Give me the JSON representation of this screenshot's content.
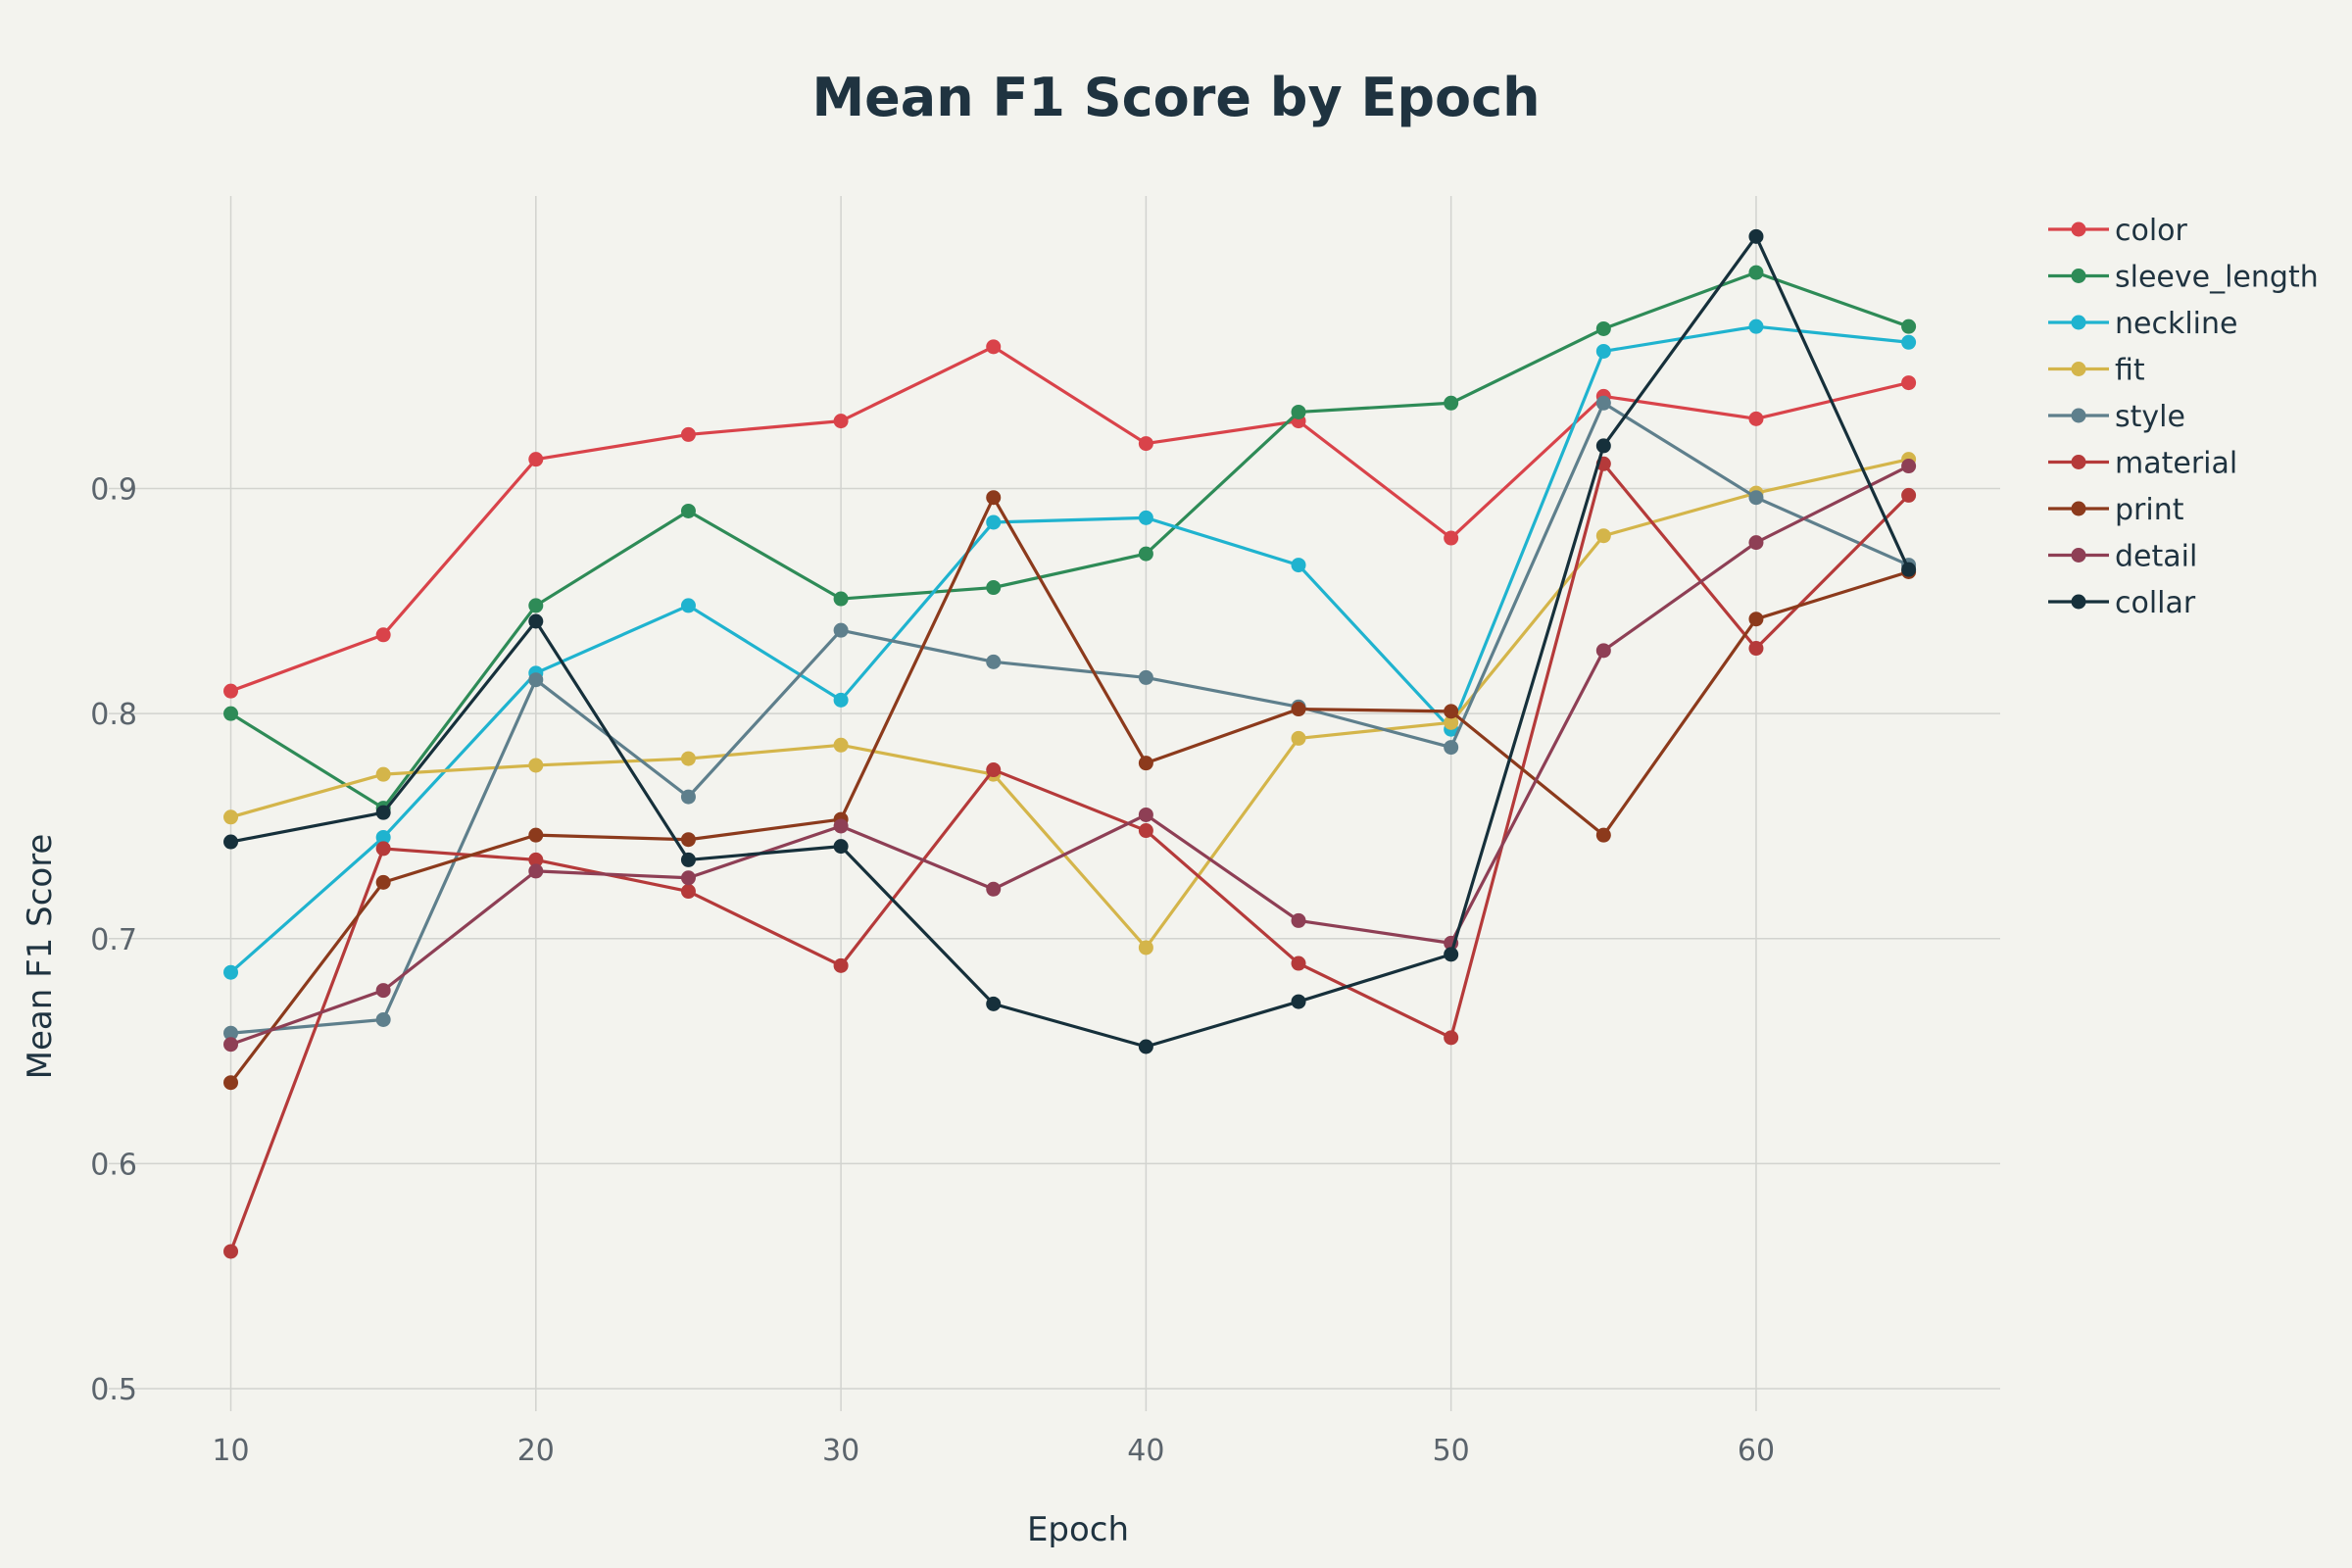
{
  "chart_data": {
    "type": "line",
    "title": "Mean F1 Score by Epoch",
    "xlabel": "Epoch",
    "ylabel": "Mean F1 Score",
    "x": [
      10,
      15,
      20,
      25,
      30,
      35,
      40,
      45,
      50,
      55,
      60,
      65
    ],
    "xlim": [
      6,
      68
    ],
    "ylim": [
      0.49,
      1.03
    ],
    "x_ticks": [
      10,
      20,
      30,
      40,
      50,
      60
    ],
    "y_ticks": [
      0.5,
      0.6,
      0.7,
      0.8,
      0.9
    ],
    "y_tick_labels": [
      "0.5",
      "0.6",
      "0.7",
      "0.8",
      "0.9"
    ],
    "grid": true,
    "legend_position": "top-right",
    "series": [
      {
        "name": "color",
        "color": "#d9434a",
        "values": [
          0.81,
          0.835,
          0.913,
          0.924,
          0.93,
          0.963,
          0.92,
          0.93,
          0.878,
          0.941,
          0.931,
          0.947
        ]
      },
      {
        "name": "sleeve_length",
        "color": "#2e8b57",
        "values": [
          0.8,
          0.758,
          0.848,
          0.89,
          0.851,
          0.856,
          0.871,
          0.934,
          0.938,
          0.971,
          0.996,
          0.972
        ]
      },
      {
        "name": "neckline",
        "color": "#1fb3cf",
        "values": [
          0.685,
          0.745,
          0.818,
          0.848,
          0.806,
          0.885,
          0.887,
          0.866,
          0.793,
          0.961,
          0.972,
          0.965
        ]
      },
      {
        "name": "fit",
        "color": "#d4b54a",
        "values": [
          0.754,
          0.773,
          0.777,
          0.78,
          0.786,
          0.773,
          0.696,
          0.789,
          0.796,
          0.879,
          0.898,
          0.913
        ]
      },
      {
        "name": "style",
        "color": "#5e7f8c",
        "values": [
          0.658,
          0.664,
          0.815,
          0.763,
          0.837,
          0.823,
          0.816,
          0.803,
          0.785,
          0.938,
          0.896,
          0.866
        ]
      },
      {
        "name": "material",
        "color": "#b53a3a",
        "values": [
          0.561,
          0.74,
          0.735,
          0.721,
          0.688,
          0.775,
          0.748,
          0.689,
          0.656,
          0.911,
          0.829,
          0.897
        ]
      },
      {
        "name": "print",
        "color": "#8c3a1c",
        "values": [
          0.636,
          0.725,
          0.746,
          0.744,
          0.753,
          0.896,
          0.778,
          0.802,
          0.801,
          0.746,
          0.842,
          0.863
        ]
      },
      {
        "name": "detail",
        "color": "#8e3f55",
        "values": [
          0.653,
          0.677,
          0.73,
          0.727,
          0.75,
          0.722,
          0.755,
          0.708,
          0.698,
          0.828,
          0.876,
          0.91
        ]
      },
      {
        "name": "collar",
        "color": "#16303b",
        "values": [
          0.743,
          0.756,
          0.841,
          0.735,
          0.741,
          0.671,
          0.652,
          0.672,
          0.693,
          0.919,
          1.012,
          0.864
        ]
      }
    ]
  }
}
